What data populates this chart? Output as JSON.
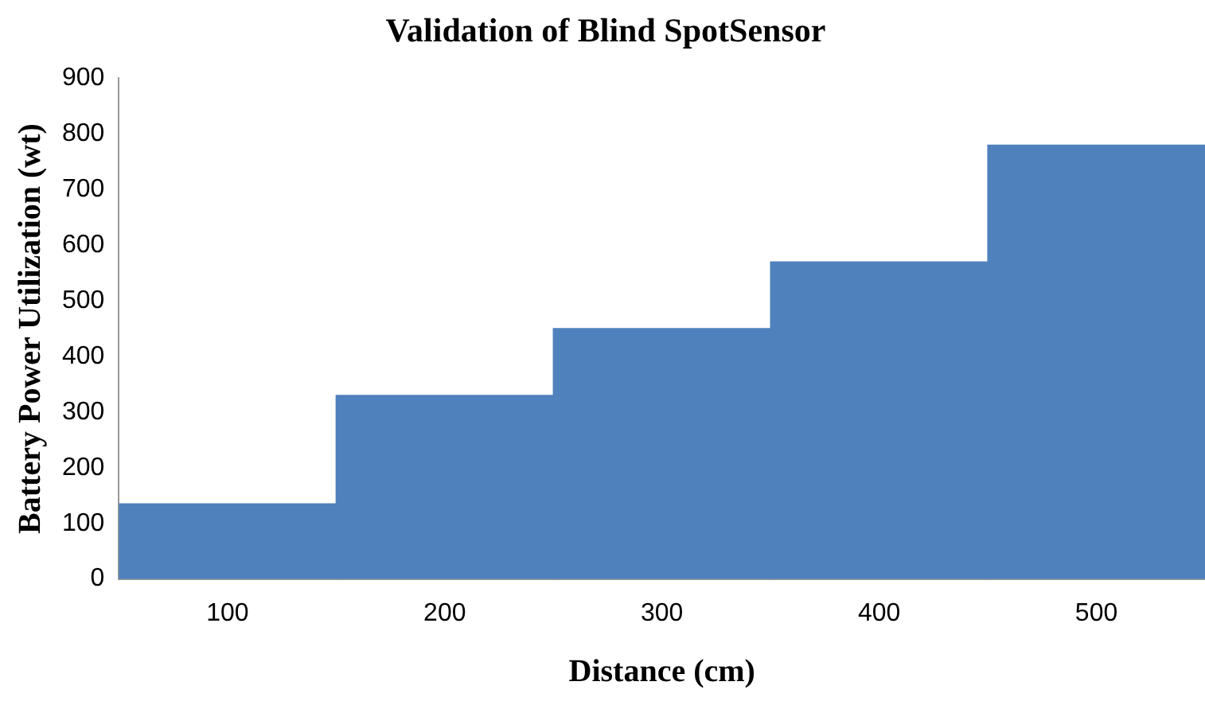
{
  "chart_data": {
    "type": "bar",
    "title": "Validation of Blind SpotSensor",
    "xlabel": "Distance (cm)",
    "ylabel": "Battery Power Utilization (wt)",
    "categories": [
      "100",
      "200",
      "300",
      "400",
      "500"
    ],
    "values": [
      135,
      330,
      450,
      570,
      780
    ],
    "color": "#4f81bd",
    "ylim": [
      0,
      900
    ],
    "yticks": [
      0,
      100,
      200,
      300,
      400,
      500,
      600,
      700,
      800,
      900
    ],
    "grid": false,
    "legend": false
  }
}
